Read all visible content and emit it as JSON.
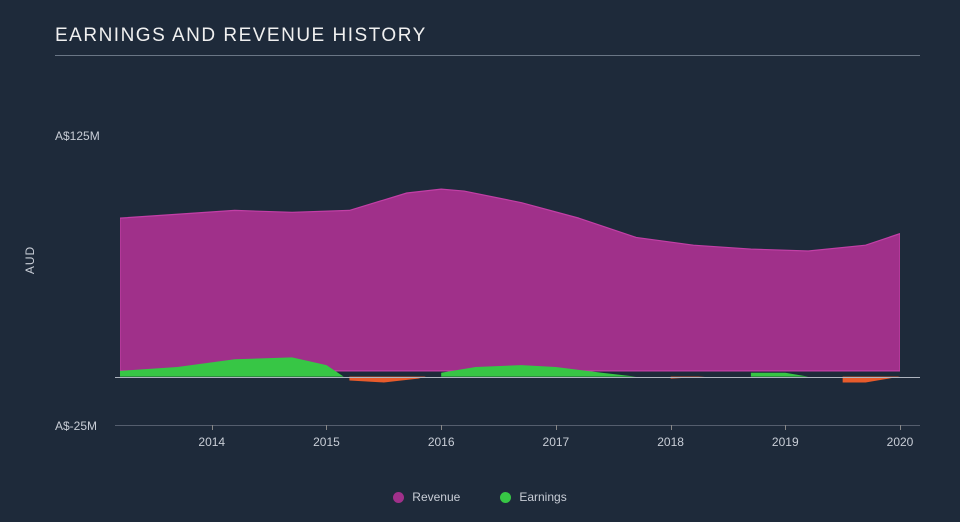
{
  "chart": {
    "type": "area",
    "title": "EARNINGS AND REVENUE HISTORY",
    "title_fontsize": 19,
    "title_color": "#f0f0f0",
    "background_color": "#1e2a3a",
    "ylabel": "AUD",
    "ylabel_fontsize": 12,
    "ytick_top": "A$125M",
    "ytick_bottom": "A$-25M",
    "ylim": [
      -25,
      125
    ],
    "axis_color": "#aeb4bf",
    "text_color": "#c8cdd6",
    "x_ticks": [
      "2014",
      "2015",
      "2016",
      "2017",
      "2018",
      "2019",
      "2020"
    ],
    "x_domain_start": 2013.2,
    "x_domain_end": 2020,
    "series": {
      "revenue": {
        "label": "Revenue",
        "color": "#a0308a",
        "stroke": "#c23fa6",
        "points": [
          {
            "x": 2013.2,
            "y": 82
          },
          {
            "x": 2013.7,
            "y": 84
          },
          {
            "x": 2014.2,
            "y": 86
          },
          {
            "x": 2014.7,
            "y": 85
          },
          {
            "x": 2015.2,
            "y": 86
          },
          {
            "x": 2015.7,
            "y": 95
          },
          {
            "x": 2016.0,
            "y": 97
          },
          {
            "x": 2016.2,
            "y": 96
          },
          {
            "x": 2016.7,
            "y": 90
          },
          {
            "x": 2017.2,
            "y": 82
          },
          {
            "x": 2017.7,
            "y": 72
          },
          {
            "x": 2018.2,
            "y": 68
          },
          {
            "x": 2018.7,
            "y": 66
          },
          {
            "x": 2019.2,
            "y": 65
          },
          {
            "x": 2019.7,
            "y": 68
          },
          {
            "x": 2020.0,
            "y": 74
          }
        ]
      },
      "earnings": {
        "label": "Earnings",
        "color_pos": "#37c645",
        "color_neg": "#e85b2b",
        "points": [
          {
            "x": 2013.2,
            "y": 3
          },
          {
            "x": 2013.7,
            "y": 5
          },
          {
            "x": 2014.2,
            "y": 9
          },
          {
            "x": 2014.7,
            "y": 10
          },
          {
            "x": 2015.0,
            "y": 6
          },
          {
            "x": 2015.2,
            "y": -2
          },
          {
            "x": 2015.5,
            "y": -3
          },
          {
            "x": 2015.8,
            "y": -1
          },
          {
            "x": 2016.0,
            "y": 2
          },
          {
            "x": 2016.3,
            "y": 5
          },
          {
            "x": 2016.7,
            "y": 6
          },
          {
            "x": 2017.0,
            "y": 5
          },
          {
            "x": 2017.4,
            "y": 2
          },
          {
            "x": 2017.7,
            "y": 0
          },
          {
            "x": 2018.0,
            "y": -1
          },
          {
            "x": 2018.3,
            "y": 0
          },
          {
            "x": 2018.7,
            "y": 2
          },
          {
            "x": 2019.0,
            "y": 2
          },
          {
            "x": 2019.2,
            "y": 0
          },
          {
            "x": 2019.5,
            "y": -3
          },
          {
            "x": 2019.7,
            "y": -3
          },
          {
            "x": 2020.0,
            "y": 0
          }
        ]
      }
    },
    "legend_items": [
      {
        "label": "Revenue",
        "color": "#a0308a"
      },
      {
        "label": "Earnings",
        "color": "#37c645"
      }
    ]
  }
}
